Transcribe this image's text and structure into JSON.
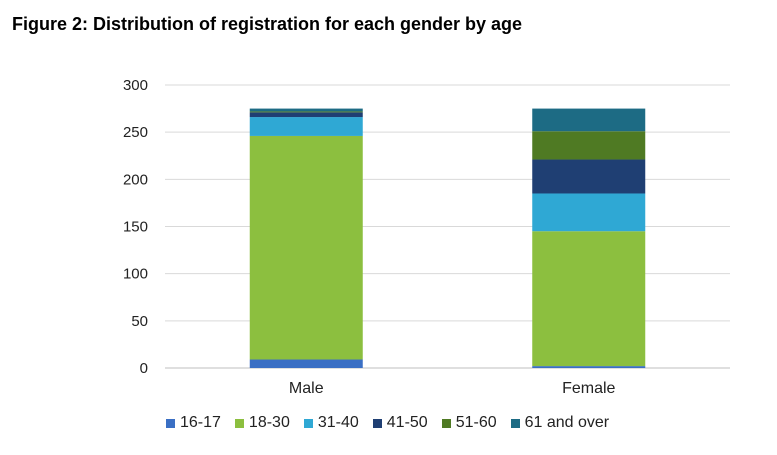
{
  "figure": {
    "title": "Figure 2:  Distribution of registration for each gender by age"
  },
  "chart_data": {
    "type": "bar",
    "stacked": true,
    "categories": [
      "Male",
      "Female"
    ],
    "ylim": [
      0,
      300
    ],
    "yticks": [
      0,
      50,
      100,
      150,
      200,
      250,
      300
    ],
    "grid": true,
    "legend_position": "bottom",
    "series": [
      {
        "name": "16-17",
        "color": "#3a6fc4",
        "values": [
          9,
          2
        ]
      },
      {
        "name": "18-30",
        "color": "#8cbf3f",
        "values": [
          237,
          143
        ]
      },
      {
        "name": "31-40",
        "color": "#2fa8d4",
        "values": [
          20,
          40
        ]
      },
      {
        "name": "41-50",
        "color": "#1f3f73",
        "values": [
          5,
          36
        ]
      },
      {
        "name": "51-60",
        "color": "#4f7a23",
        "values": [
          1,
          30
        ]
      },
      {
        "name": "61 and over",
        "color": "#1d6b84",
        "values": [
          3,
          24
        ]
      }
    ]
  }
}
